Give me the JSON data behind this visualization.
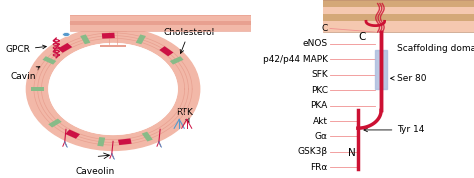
{
  "bg_color": "#ffffff",
  "membrane_color": "#f2b8a8",
  "membrane_dark": "#e8a090",
  "membrane_light": "#fad0c0",
  "caveolae_ring_color": "#f2b8a8",
  "caveolae_ring_dark": "#e8a090",
  "green_color": "#88bb88",
  "red_color": "#cc1144",
  "blue_color": "#5599cc",
  "pink_line_color": "#f09090",
  "scaffolding_color": "#aabbdd",
  "right_mem_colors": [
    "#f5c8b0",
    "#e8b080",
    "#f5c8b0",
    "#e8b080",
    "#f5c8b0"
  ],
  "labels_right": [
    "C",
    "eNOS",
    "p42/p44 MAPK",
    "SFK",
    "PKC",
    "PKA",
    "Akt",
    "Gα",
    "GSK3β",
    "FRα"
  ],
  "fontsize": 6.5,
  "annot_fontsize": 6.5
}
